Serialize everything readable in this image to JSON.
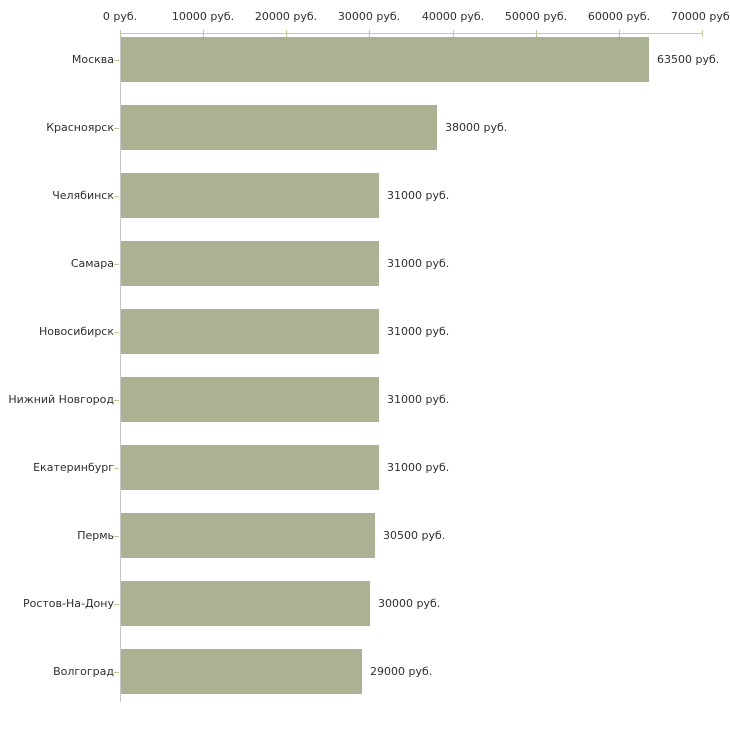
{
  "chart_data": {
    "type": "bar",
    "orientation": "horizontal",
    "title": "",
    "xlabel": "",
    "ylabel": "",
    "unit": "руб.",
    "categories": [
      "Москва",
      "Красноярск",
      "Челябинск",
      "Самара",
      "Новосибирск",
      "Нижний Новгород",
      "Екатеринбург",
      "Пермь",
      "Ростов-На-Дону",
      "Волгоград"
    ],
    "values": [
      63500,
      38000,
      31000,
      31000,
      31000,
      31000,
      31000,
      30500,
      30000,
      29000
    ],
    "value_labels": [
      "63500 руб.",
      "38000 руб.",
      "31000 руб.",
      "31000 руб.",
      "31000 руб.",
      "31000 руб.",
      "31000 руб.",
      "30500 руб.",
      "30000 руб.",
      "29000 руб."
    ],
    "xlim": [
      0,
      70000
    ],
    "x_ticks": [
      0,
      10000,
      20000,
      30000,
      40000,
      50000,
      60000,
      70000
    ],
    "x_tick_labels": [
      "0 руб.",
      "10000 руб.",
      "20000 руб.",
      "30000 руб.",
      "40000 руб.",
      "50000 руб.",
      "60000 руб.",
      "70000 руб."
    ],
    "grid": false,
    "legend": "none",
    "colors": {
      "bar": "#abb294",
      "axis_line": "#c6c6c6",
      "tick_mark": "#c6c299",
      "text": "#2f2f2f",
      "background": "#ffffff"
    }
  }
}
